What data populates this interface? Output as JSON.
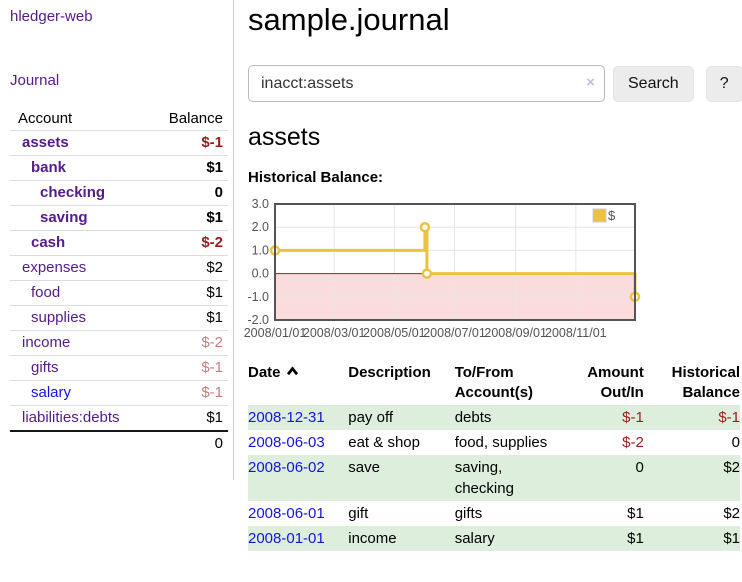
{
  "theme": {
    "purple": "#551a8b",
    "blue": "#1414e0",
    "neg": "#9b1c1c",
    "neg-dim": "#c47d7d",
    "green-row": "#ddeedd",
    "divider": "#cccccc",
    "btn-bg": "#ececec"
  },
  "app": {
    "brand": "hledger-web"
  },
  "sidebar": {
    "journal_label": "Journal",
    "accounts": {
      "headers": [
        "Account",
        "Balance"
      ],
      "rows": [
        {
          "name": "assets",
          "balance": "$-1"
        },
        {
          "name": "bank",
          "balance": "$1"
        },
        {
          "name": "checking",
          "balance": "0"
        },
        {
          "name": "saving",
          "balance": "$1"
        },
        {
          "name": "cash",
          "balance": "$-2"
        },
        {
          "name": "expenses",
          "balance": "$2"
        },
        {
          "name": "food",
          "balance": "$1"
        },
        {
          "name": "supplies",
          "balance": "$1"
        },
        {
          "name": "income",
          "balance": "$-2"
        },
        {
          "name": "gifts",
          "balance": "$-1"
        },
        {
          "name": "salary",
          "balance": "$-1"
        },
        {
          "name": "liabilities:debts",
          "balance": "$1"
        }
      ],
      "total": "0"
    }
  },
  "main": {
    "title": "sample.journal",
    "search": {
      "value": "inacct:assets",
      "clear_icon": "×",
      "button_label": "Search",
      "help_label": "?"
    },
    "account_heading": "assets",
    "chart_label": "Historical Balance:",
    "register": {
      "headers": {
        "date": "Date",
        "description": "Description",
        "account_line1": "To/From",
        "account_line2": "Account(s)",
        "amount_line1": "Amount",
        "amount_line2": "Out/In",
        "balance_line1": "Historical",
        "balance_line2": "Balance"
      },
      "rows": [
        {
          "date": "2008-12-31",
          "description": "pay off",
          "accounts": "debts",
          "amount": "$-1",
          "balance": "$-1"
        },
        {
          "date": "2008-06-03",
          "description": "eat & shop",
          "accounts": "food, supplies",
          "amount": "$-2",
          "balance": "0"
        },
        {
          "date": "2008-06-02",
          "description": "save",
          "accounts": "saving, checking",
          "amount": "0",
          "balance": "$2"
        },
        {
          "date": "2008-06-01",
          "description": "gift",
          "accounts": "gifts",
          "amount": "$1",
          "balance": "$2"
        },
        {
          "date": "2008-01-01",
          "description": "income",
          "accounts": "salary",
          "amount": "$1",
          "balance": "$1"
        }
      ]
    }
  },
  "chart_data": {
    "type": "line",
    "style": "step",
    "title": "Historical Balance",
    "series": [
      {
        "name": "$",
        "points": [
          {
            "x": "2008/01/01",
            "day": 0,
            "y": 1.0
          },
          {
            "x": "2008/06/01",
            "day": 152,
            "y": 2.0
          },
          {
            "x": "2008/06/03",
            "day": 154,
            "y": 0.0
          },
          {
            "x": "2008/12/31",
            "day": 365,
            "y": -1.0
          }
        ]
      }
    ],
    "ylim": [
      -2.0,
      3.0
    ],
    "yticks": [
      "3.0",
      "2.0",
      "1.0",
      "0.0",
      "-1.0",
      "-2.0"
    ],
    "xticks": [
      {
        "label": "2008/01/01",
        "day": 0
      },
      {
        "label": "2008/03/01",
        "day": 60
      },
      {
        "label": "2008/05/01",
        "day": 121
      },
      {
        "label": "2008/07/01",
        "day": 182
      },
      {
        "label": "2008/09/01",
        "day": 244
      },
      {
        "label": "2008/11/01",
        "day": 305
      }
    ],
    "x_range_days": [
      0,
      365
    ],
    "legend": {
      "label": "$",
      "position": "top-right"
    },
    "grid": true,
    "colors": {
      "line": "#edc240",
      "negative_region": "#fbdcdc",
      "zero_line": "#991f1f",
      "border": "#545454",
      "grid_line": "#e6e6e6",
      "tick_text": "#545454"
    }
  }
}
